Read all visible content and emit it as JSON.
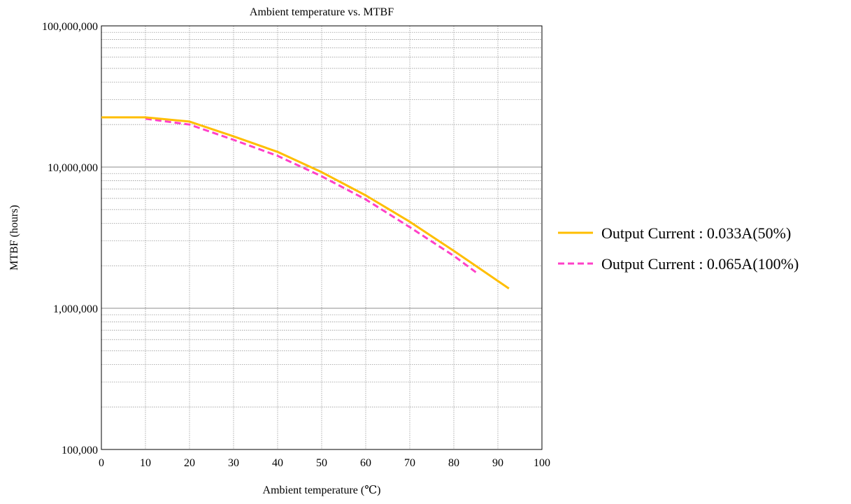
{
  "chart_data": {
    "type": "line",
    "title": "Ambient temperature vs. MTBF",
    "xlabel": "Ambient temperature (℃)",
    "ylabel": "MTBF (hours)",
    "xlim": [
      0,
      100
    ],
    "ylim": [
      100000,
      100000000
    ],
    "y_scale": "log",
    "grid": true,
    "legend_position": "right",
    "x_ticks": [
      0,
      10,
      20,
      30,
      40,
      50,
      60,
      70,
      80,
      90,
      100
    ],
    "x_tick_labels": [
      "0",
      "10",
      "20",
      "30",
      "40",
      "50",
      "60",
      "70",
      "80",
      "90",
      "100"
    ],
    "y_ticks": [
      100000,
      1000000,
      10000000,
      100000000
    ],
    "y_tick_labels": [
      "100,000",
      "1,000,000",
      "10,000,000",
      "100,000,000"
    ],
    "series": [
      {
        "name": "Output Current : 0.033A(50%)",
        "color": "#FFBE00",
        "dash": "solid",
        "x": [
          0,
          10,
          20,
          30,
          40,
          50,
          60,
          70,
          80,
          92.5
        ],
        "y": [
          22500000,
          22500000,
          21000000,
          16500000,
          12800000,
          9200000,
          6300000,
          4100000,
          2550000,
          1380000
        ]
      },
      {
        "name": "Output Current : 0.065A(100%)",
        "color": "#FF40C8",
        "dash": "dashed",
        "x": [
          10,
          20,
          30,
          40,
          50,
          60,
          70,
          80,
          85
        ],
        "y": [
          22000000,
          20000000,
          15600000,
          12000000,
          8600000,
          5900000,
          3750000,
          2350000,
          1800000
        ]
      }
    ]
  }
}
